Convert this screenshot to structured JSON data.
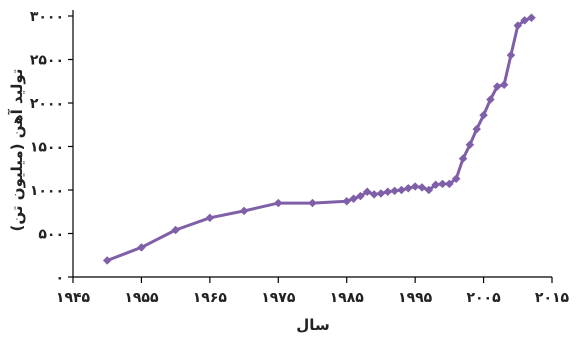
{
  "chart_data": {
    "type": "line",
    "xlabel": "سال",
    "ylabel": "تولید آهن (میلیون تن)",
    "xlim": [
      1945,
      2015
    ],
    "ylim": [
      0,
      3000
    ],
    "xticks": [
      1945,
      1955,
      1965,
      1975,
      1985,
      1995,
      2005,
      2015
    ],
    "xtick_labels": [
      "۱۹۴۵",
      "۱۹۵۵",
      "۱۹۶۵",
      "۱۹۷۵",
      "۱۹۸۵",
      "۱۹۹۵",
      "۲۰۰۵",
      "۲۰۱۵"
    ],
    "yticks": [
      0,
      500,
      1000,
      1500,
      2000,
      2500,
      3000
    ],
    "ytick_labels": [
      "۰",
      "۵۰۰",
      "۱۰۰۰",
      "۱۵۰۰",
      "۲۰۰۰",
      "۲۵۰۰",
      "۳۰۰۰"
    ],
    "grid": false,
    "colors": {
      "series": "#7f5fa8",
      "axis": "#000000"
    },
    "series": [
      {
        "x": [
          1950,
          1955,
          1960,
          1965,
          1970,
          1975,
          1980,
          1985,
          1986,
          1987,
          1988,
          1989,
          1990,
          1991,
          1992,
          1993,
          1994,
          1995,
          1996,
          1997,
          1998,
          1999,
          2000,
          2001,
          2002,
          2003,
          2004,
          2005,
          2006,
          2007,
          2008,
          2009,
          2010,
          2011,
          2012
        ],
        "y": [
          190,
          340,
          540,
          680,
          760,
          850,
          850,
          870,
          900,
          930,
          980,
          950,
          960,
          980,
          990,
          1000,
          1020,
          1040,
          1030,
          1000,
          1060,
          1070,
          1070,
          1130,
          1360,
          1520,
          1700,
          1860,
          2040,
          2190,
          2210,
          2550,
          2890,
          2950,
          2980
        ]
      }
    ]
  }
}
